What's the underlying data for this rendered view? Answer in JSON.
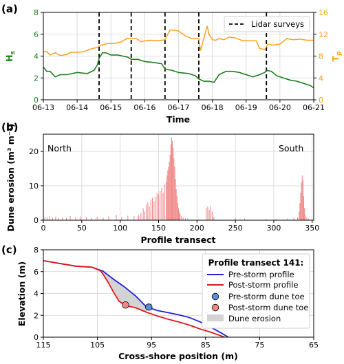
{
  "colors": {
    "hs": "#1a7f1a",
    "tp": "#ff9f1c",
    "erosion": "#f08a8a",
    "pre": "#1f1fdc",
    "post": "#e01818",
    "pre_toe": "#5b8fd8",
    "post_toe": "#ef8a80",
    "fill": "#d3d3d3"
  },
  "panels": {
    "a": "(a)",
    "b": "(b)",
    "c": "(c)"
  },
  "chart_data": [
    {
      "type": "line",
      "panel": "(a)",
      "xlabel": "Time",
      "ylabel_left": "Hs",
      "ylabel_left_sub": "s",
      "ylabel_right": "Tp",
      "ylabel_right_sub": "p",
      "x_ticks": [
        "06-13",
        "06-14",
        "06-15",
        "06-16",
        "06-17",
        "06-18",
        "06-19",
        "06-20",
        "06-21"
      ],
      "xlim": [
        0,
        8
      ],
      "ylim_left": [
        0,
        8
      ],
      "ylim_right": [
        0,
        16
      ],
      "yticks_left": [
        "0",
        "2",
        "4",
        "6",
        "8"
      ],
      "yticks_right": [
        "0",
        "4",
        "8",
        "12",
        "16"
      ],
      "lidar_surveys": [
        1.65,
        2.6,
        3.6,
        4.6,
        6.6
      ],
      "legend": "Lidar surveys",
      "legend_position": "top-right",
      "series": [
        {
          "axis": "left",
          "x": [
            0,
            0.1,
            0.2,
            0.35,
            0.5,
            0.7,
            1.0,
            1.3,
            1.5,
            1.6,
            1.65,
            1.75,
            1.85,
            2.0,
            2.2,
            2.5,
            2.6,
            2.8,
            3.0,
            3.3,
            3.5,
            3.6,
            3.8,
            4.0,
            4.3,
            4.5,
            4.6,
            4.75,
            4.9,
            5.05,
            5.2,
            5.4,
            5.6,
            5.8,
            6.0,
            6.2,
            6.4,
            6.55,
            6.6,
            6.75,
            6.9,
            7.1,
            7.3,
            7.5,
            7.7,
            7.9,
            8.0
          ],
          "values": [
            3.0,
            2.6,
            2.6,
            2.1,
            2.3,
            2.3,
            2.5,
            2.4,
            2.7,
            3.2,
            3.8,
            4.3,
            4.3,
            4.1,
            4.1,
            3.9,
            3.7,
            3.7,
            3.5,
            3.4,
            3.3,
            2.8,
            2.7,
            2.5,
            2.4,
            2.2,
            1.9,
            1.7,
            1.7,
            1.6,
            2.3,
            2.6,
            2.6,
            2.5,
            2.3,
            2.1,
            2.3,
            2.5,
            2.7,
            2.6,
            2.2,
            2.0,
            1.8,
            1.7,
            1.5,
            1.3,
            1.1
          ]
        },
        {
          "axis": "right",
          "x": [
            0,
            0.1,
            0.2,
            0.35,
            0.5,
            0.7,
            0.8,
            1.0,
            1.2,
            1.4,
            1.6,
            1.7,
            1.9,
            2.1,
            2.3,
            2.5,
            2.6,
            2.75,
            2.9,
            3.0,
            3.2,
            3.4,
            3.6,
            3.75,
            3.9,
            4.0,
            4.2,
            4.4,
            4.6,
            4.65,
            4.75,
            4.85,
            4.9,
            5.0,
            5.1,
            5.2,
            5.35,
            5.5,
            5.7,
            5.9,
            6.1,
            6.3,
            6.4,
            6.55,
            6.65,
            6.8,
            7.0,
            7.2,
            7.4,
            7.6,
            7.8,
            8.0
          ],
          "values": [
            8.8,
            8.8,
            8.2,
            8.6,
            8.1,
            8.3,
            8.7,
            8.7,
            8.8,
            9.3,
            9.6,
            10.0,
            10.3,
            10.3,
            10.6,
            11.3,
            11.2,
            11.2,
            10.6,
            10.8,
            10.9,
            10.8,
            11.0,
            12.8,
            12.7,
            12.6,
            11.7,
            11.2,
            11.2,
            9.0,
            11.3,
            13.5,
            12.0,
            11.0,
            10.9,
            11.2,
            11.0,
            11.5,
            11.3,
            10.8,
            10.8,
            10.8,
            9.4,
            9.2,
            10.2,
            10.0,
            10.2,
            11.2,
            11.0,
            11.1,
            10.9,
            10.9
          ]
        }
      ]
    },
    {
      "type": "bar",
      "panel": "(b)",
      "xlabel": "Profile transect",
      "ylabel": "Dune erosion (m³ m⁻¹)",
      "xlim": [
        0,
        352
      ],
      "ylim": [
        0,
        25
      ],
      "x_ticks": [
        "0",
        "50",
        "100",
        "150",
        "200",
        "250",
        "300",
        "350"
      ],
      "y_ticks": [
        "0",
        "10",
        "20"
      ],
      "annotations": [
        "North",
        "South"
      ],
      "x": [
        2,
        5,
        8,
        12,
        16,
        20,
        25,
        30,
        35,
        42,
        48,
        56,
        63,
        70,
        78,
        85,
        95,
        102,
        110,
        118,
        124,
        127,
        130,
        132,
        134,
        136,
        138,
        140,
        142,
        144,
        146,
        148,
        150,
        152,
        154,
        156,
        158,
        160,
        161,
        162,
        163,
        164,
        165,
        166,
        167,
        168,
        169,
        170,
        171,
        172,
        173,
        174,
        175,
        176,
        177,
        178,
        180,
        182,
        185,
        188,
        212,
        214,
        216,
        218,
        220,
        222,
        250,
        262,
        290,
        303,
        318,
        326,
        331,
        333,
        334,
        335,
        336,
        337,
        338,
        339,
        340,
        341,
        343,
        345
      ],
      "values": [
        1.0,
        0.8,
        1.2,
        0.8,
        1.0,
        0.6,
        0.9,
        0.7,
        1.2,
        0.8,
        1.1,
        0.9,
        0.6,
        1.0,
        0.7,
        1.1,
        1.6,
        1.0,
        1.3,
        1.2,
        1.5,
        2.0,
        3.4,
        2.5,
        4.5,
        5.2,
        4.0,
        6.0,
        6.5,
        5.5,
        6.8,
        8.0,
        7.5,
        8.5,
        9.5,
        8.0,
        10.5,
        11.0,
        13.0,
        14.5,
        15.5,
        17.0,
        19.0,
        22.0,
        24.0,
        23.0,
        21.0,
        18.0,
        15.5,
        12.0,
        9.0,
        7.0,
        5.0,
        3.5,
        2.5,
        1.8,
        1.2,
        0.8,
        0.6,
        0.5,
        3.5,
        4.0,
        3.0,
        4.2,
        2.5,
        1.0,
        0.6,
        0.5,
        0.4,
        0.4,
        0.5,
        0.6,
        0.8,
        2.5,
        5.0,
        8.0,
        11.0,
        13.0,
        11.5,
        7.0,
        3.5,
        1.5,
        0.8,
        0.5
      ]
    },
    {
      "type": "line",
      "panel": "(c)",
      "xlabel": "Cross-shore position (m)",
      "ylabel": "Elevation (m)",
      "xlim": [
        115,
        65
      ],
      "ylim": [
        0,
        8
      ],
      "x_ticks": [
        "115",
        "105",
        "95",
        "85",
        "75",
        "65"
      ],
      "y_ticks": [
        "0",
        "2",
        "4",
        "6",
        "8"
      ],
      "legend_title": "Profile transect 141:",
      "legend_position": "top-right",
      "series": [
        {
          "name": "Pre-storm profile",
          "x": [
            115,
            112,
            109,
            106,
            104,
            102,
            100,
            98,
            96,
            94,
            92,
            90,
            88,
            86,
            84,
            82,
            80.8
          ],
          "values": [
            7.0,
            6.75,
            6.5,
            6.4,
            6.05,
            5.3,
            4.6,
            3.8,
            2.8,
            2.45,
            2.25,
            2.05,
            1.8,
            1.4,
            0.9,
            0.35,
            0.0
          ]
        },
        {
          "name": "Post-storm profile",
          "x": [
            115,
            112,
            109,
            106,
            104.5,
            104,
            103,
            102,
            101,
            100,
            99,
            98,
            96,
            94,
            92,
            90,
            88,
            86,
            84,
            82,
            81.5
          ],
          "values": [
            7.0,
            6.75,
            6.5,
            6.4,
            6.1,
            5.8,
            5.0,
            4.1,
            3.3,
            2.95,
            2.8,
            2.7,
            2.3,
            1.95,
            1.65,
            1.4,
            1.1,
            0.75,
            0.45,
            0.1,
            0.0
          ]
        },
        {
          "name": "Pre-storm dune toe",
          "x": [
            95.5
          ],
          "values": [
            2.75
          ]
        },
        {
          "name": "Post-storm dune toe",
          "x": [
            99.8
          ],
          "values": [
            2.95
          ]
        }
      ],
      "fill_label": "Dune erosion"
    }
  ]
}
